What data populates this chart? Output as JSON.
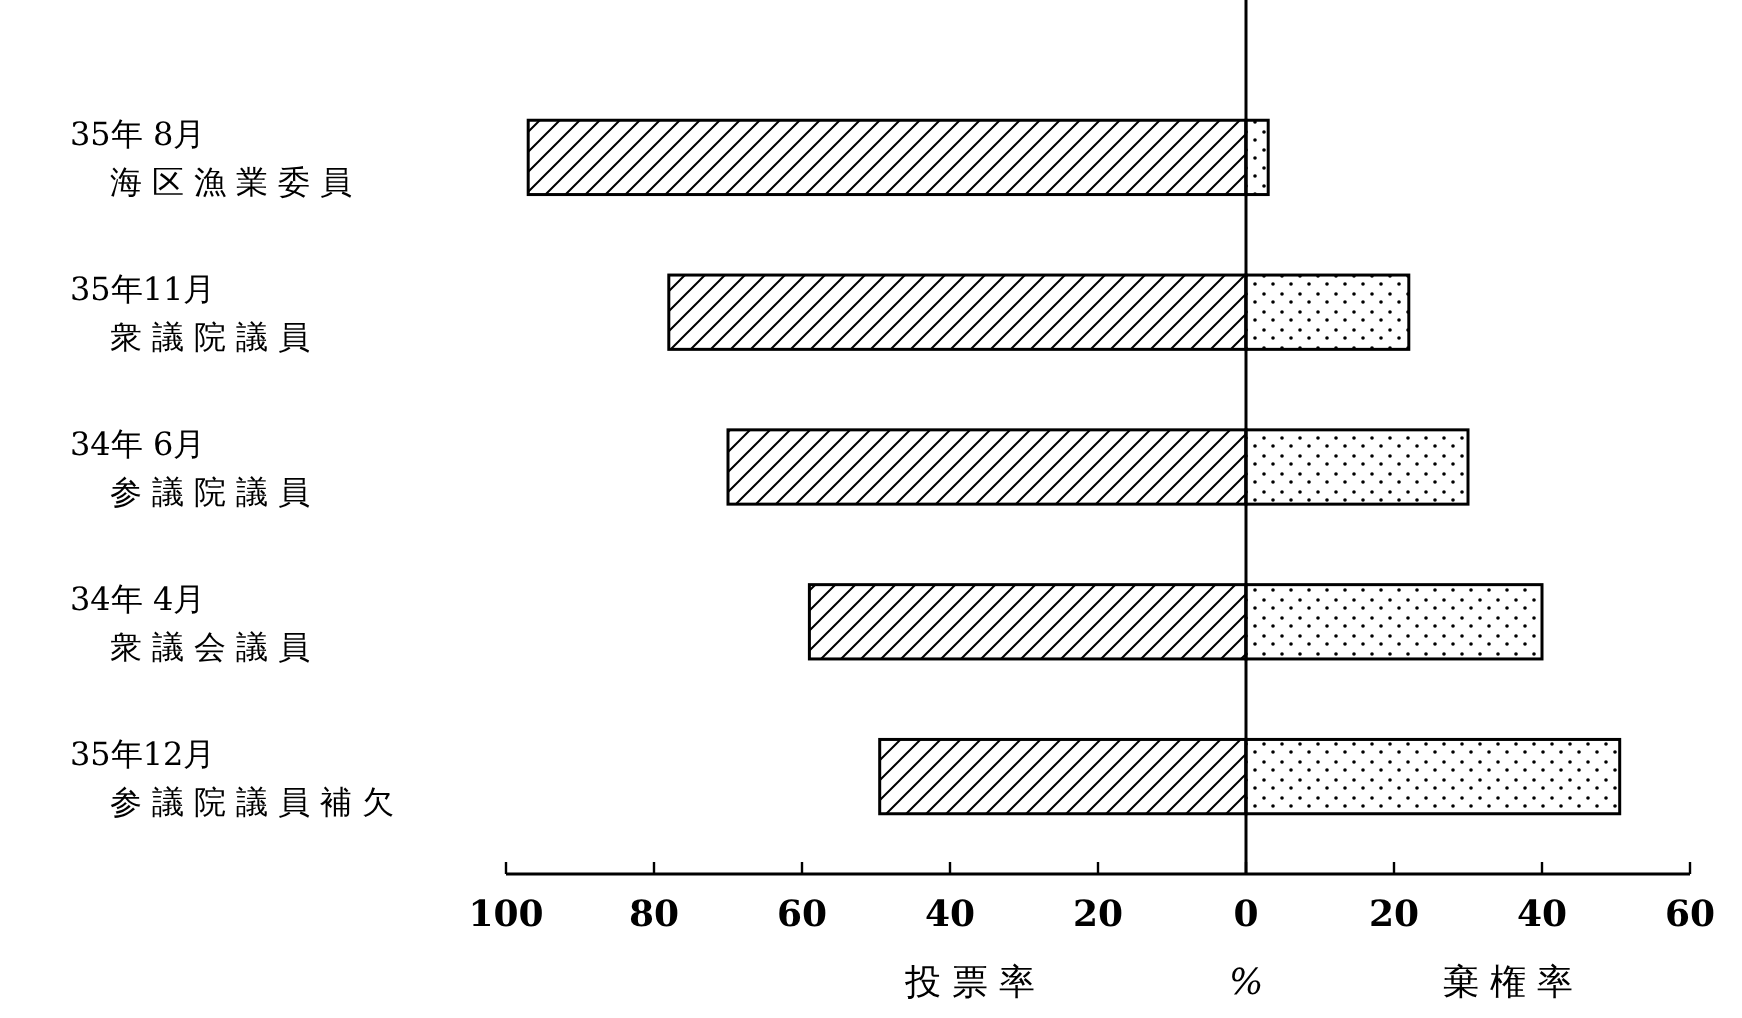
{
  "chart_data": {
    "type": "bar",
    "orientation": "horizontal",
    "stacked": true,
    "categories": [
      "35年 8月海区漁業委員",
      "35年11月衆議院議員",
      "34年 6月参議院議員",
      "34年 4月衆議会議員",
      "35年12月参議院議員補欠"
    ],
    "series": [
      {
        "color": "#000000",
        "values": [
          -97,
          -78,
          -70,
          -59,
          -49.5
        ]
      },
      {
        "color": "#000000",
        "values": [
          3,
          22,
          30,
          40,
          50.5
        ]
      }
    ],
    "xlim": [
      -100,
      60
    ],
    "xticks": [
      {
        "value": -100,
        "label": "100"
      },
      {
        "value": -80,
        "label": "80"
      },
      {
        "value": -60,
        "label": "60"
      },
      {
        "value": -40,
        "label": "40"
      },
      {
        "value": -20,
        "label": "20"
      },
      0,
      20,
      40,
      60
    ],
    "xlabel": "%",
    "annotations": [
      "投 票 率",
      "棄 権 率"
    ]
  }
}
